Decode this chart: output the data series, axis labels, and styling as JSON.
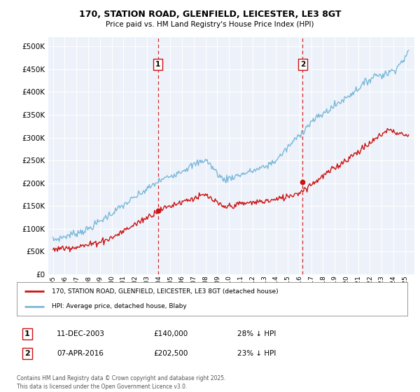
{
  "title_line1": "170, STATION ROAD, GLENFIELD, LEICESTER, LE3 8GT",
  "title_line2": "Price paid vs. HM Land Registry's House Price Index (HPI)",
  "ylim": [
    0,
    520000
  ],
  "yticks": [
    0,
    50000,
    100000,
    150000,
    200000,
    250000,
    300000,
    350000,
    400000,
    450000,
    500000
  ],
  "hpi_color": "#7ab8d9",
  "price_color": "#cc1111",
  "vline_color": "#cc1111",
  "sale1_x": 2003.95,
  "sale1_price": 140000,
  "sale1_label": "1",
  "sale2_x": 2016.27,
  "sale2_price": 202500,
  "sale2_label": "2",
  "legend_line1": "170, STATION ROAD, GLENFIELD, LEICESTER, LE3 8GT (detached house)",
  "legend_line2": "HPI: Average price, detached house, Blaby",
  "table_row1": [
    "1",
    "11-DEC-2003",
    "£140,000",
    "28% ↓ HPI"
  ],
  "table_row2": [
    "2",
    "07-APR-2016",
    "£202,500",
    "23% ↓ HPI"
  ],
  "footnote": "Contains HM Land Registry data © Crown copyright and database right 2025.\nThis data is licensed under the Open Government Licence v3.0.",
  "background_color": "#edf2fa"
}
